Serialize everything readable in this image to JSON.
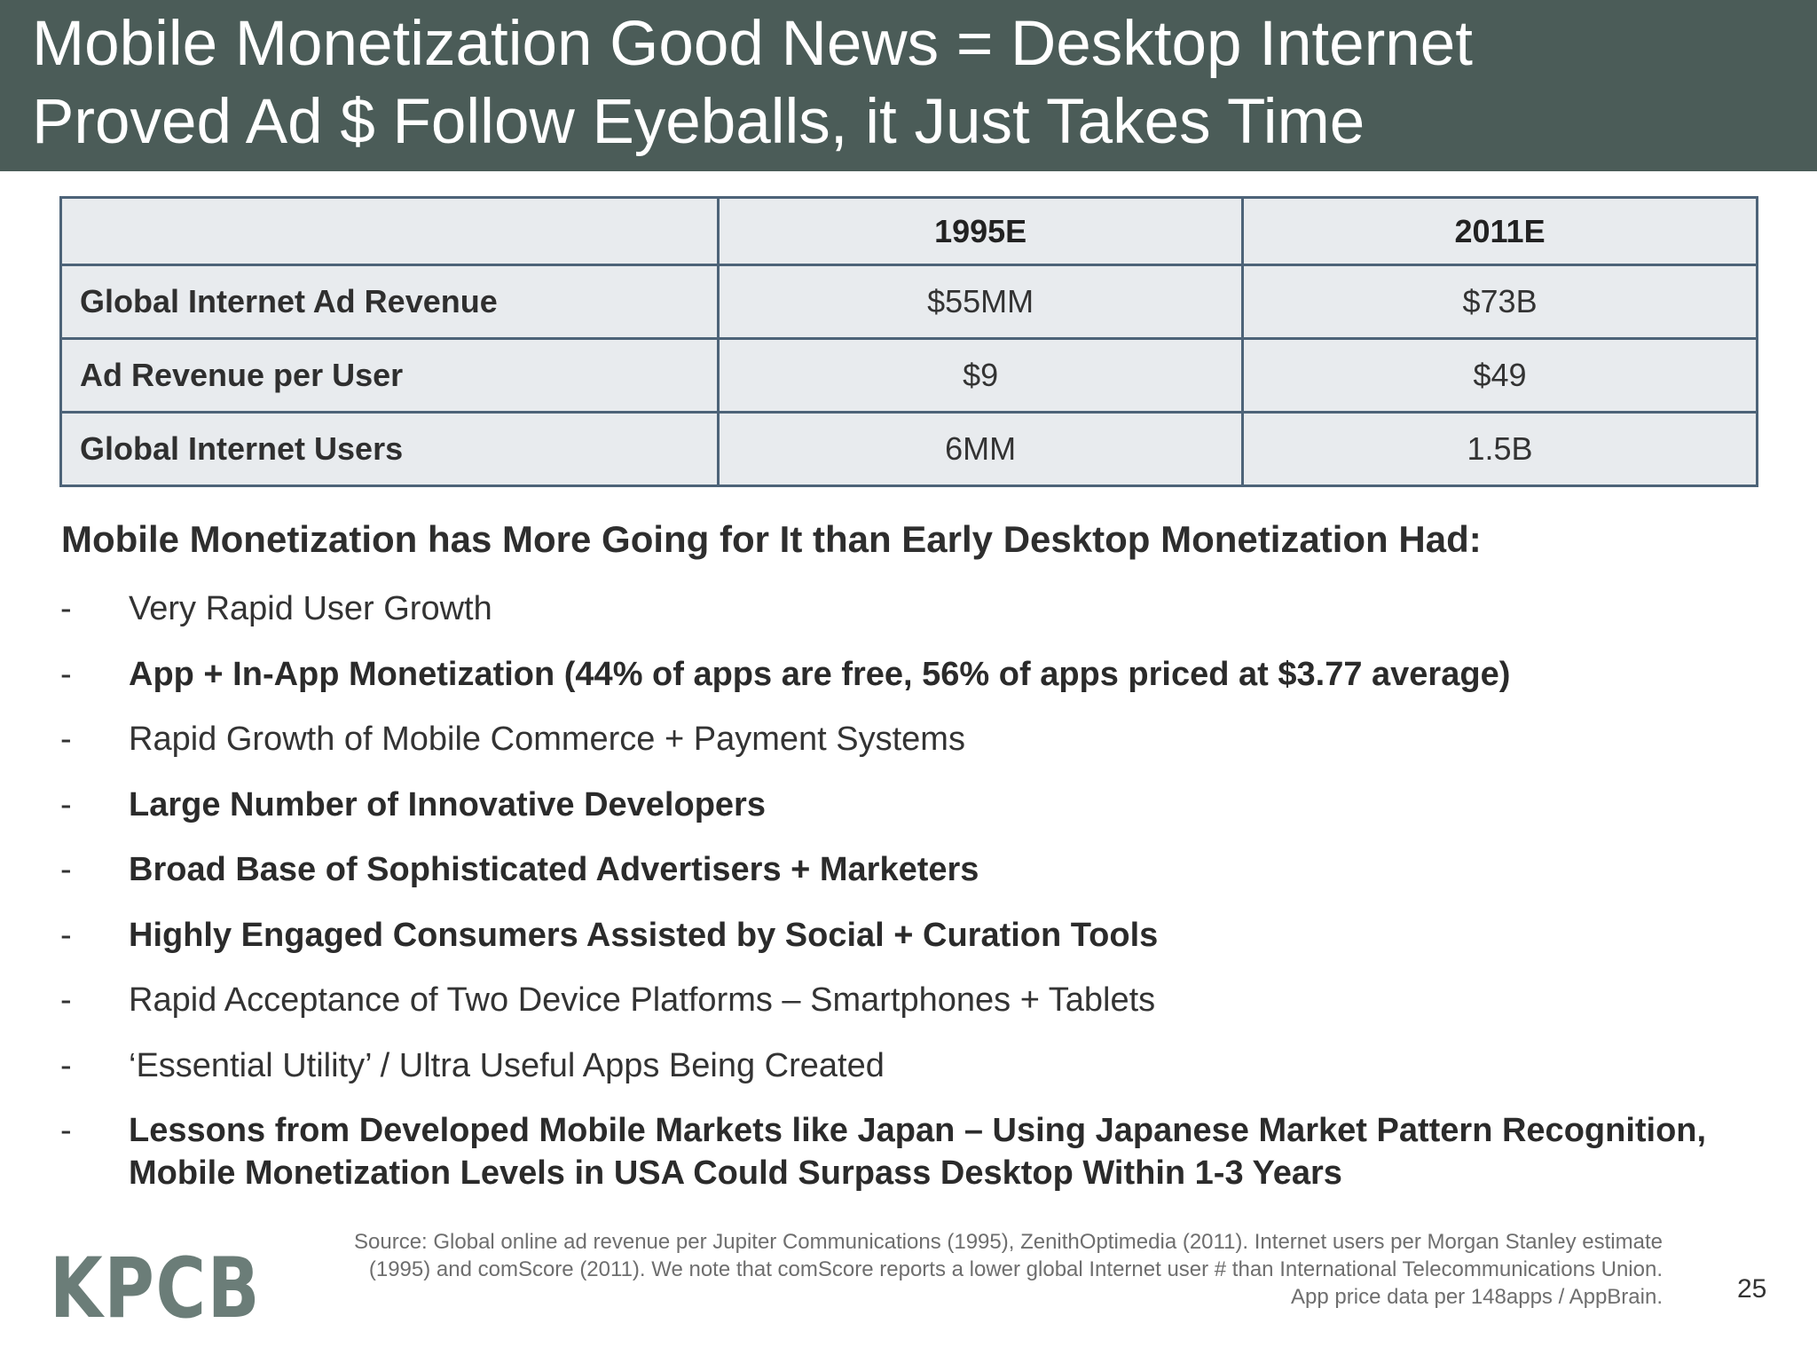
{
  "title": {
    "line1": "Mobile Monetization Good News = Desktop Internet",
    "line2": "Proved Ad $ Follow Eyeballs, it Just Takes Time"
  },
  "table": {
    "headers": [
      "",
      "1995E",
      "2011E"
    ],
    "rows": [
      {
        "label": "Global Internet Ad Revenue",
        "values": [
          "$55MM",
          "$73B"
        ]
      },
      {
        "label": "Ad Revenue per User",
        "values": [
          "$9",
          "$49"
        ]
      },
      {
        "label": "Global Internet Users",
        "values": [
          "6MM",
          "1.5B"
        ]
      }
    ]
  },
  "subheading": "Mobile Monetization has More Going for It than Early Desktop Monetization Had:",
  "bullets": [
    {
      "dash": "-",
      "text": "Very Rapid User Growth",
      "bold": false
    },
    {
      "dash": "-",
      "text": "App + In-App Monetization (44% of apps are free, 56% of apps priced at $3.77 average)",
      "bold": true
    },
    {
      "dash": "-",
      "text": "Rapid Growth of Mobile Commerce + Payment Systems",
      "bold": false
    },
    {
      "dash": "-",
      "text": "Large Number of Innovative Developers",
      "bold": true
    },
    {
      "dash": "-",
      "text": "Broad Base of Sophisticated Advertisers + Marketers",
      "bold": true
    },
    {
      "dash": "-",
      "text": "Highly Engaged Consumers Assisted by Social + Curation Tools",
      "bold": true
    },
    {
      "dash": "-",
      "text": "Rapid Acceptance of Two Device Platforms – Smartphones + Tablets",
      "bold": false
    },
    {
      "dash": "-",
      "text": "‘Essential Utility’ / Ultra Useful Apps Being Created",
      "bold": false
    },
    {
      "dash": "-",
      "text": "Lessons from Developed Mobile Markets like Japan – Using Japanese Market Pattern Recognition,",
      "text2": "Mobile Monetization Levels in USA Could Surpass Desktop Within 1-3 Years",
      "bold": true
    }
  ],
  "source": {
    "line1": "Source: Global online ad revenue per Jupiter Communications (1995), ZenithOptimedia (2011). Internet users per Morgan Stanley estimate",
    "line2": "(1995) and comScore (2011). We note that comScore reports a lower global Internet user # than International Telecommunications Union.",
    "line3": "App price data per 148apps / AppBrain."
  },
  "logo": "KPCB",
  "page_number": "25",
  "colors": {
    "title_bar": "#4b5c58",
    "table_fill": "#e8ebee",
    "table_border": "#4d6378",
    "logo": "#6b7d78"
  }
}
